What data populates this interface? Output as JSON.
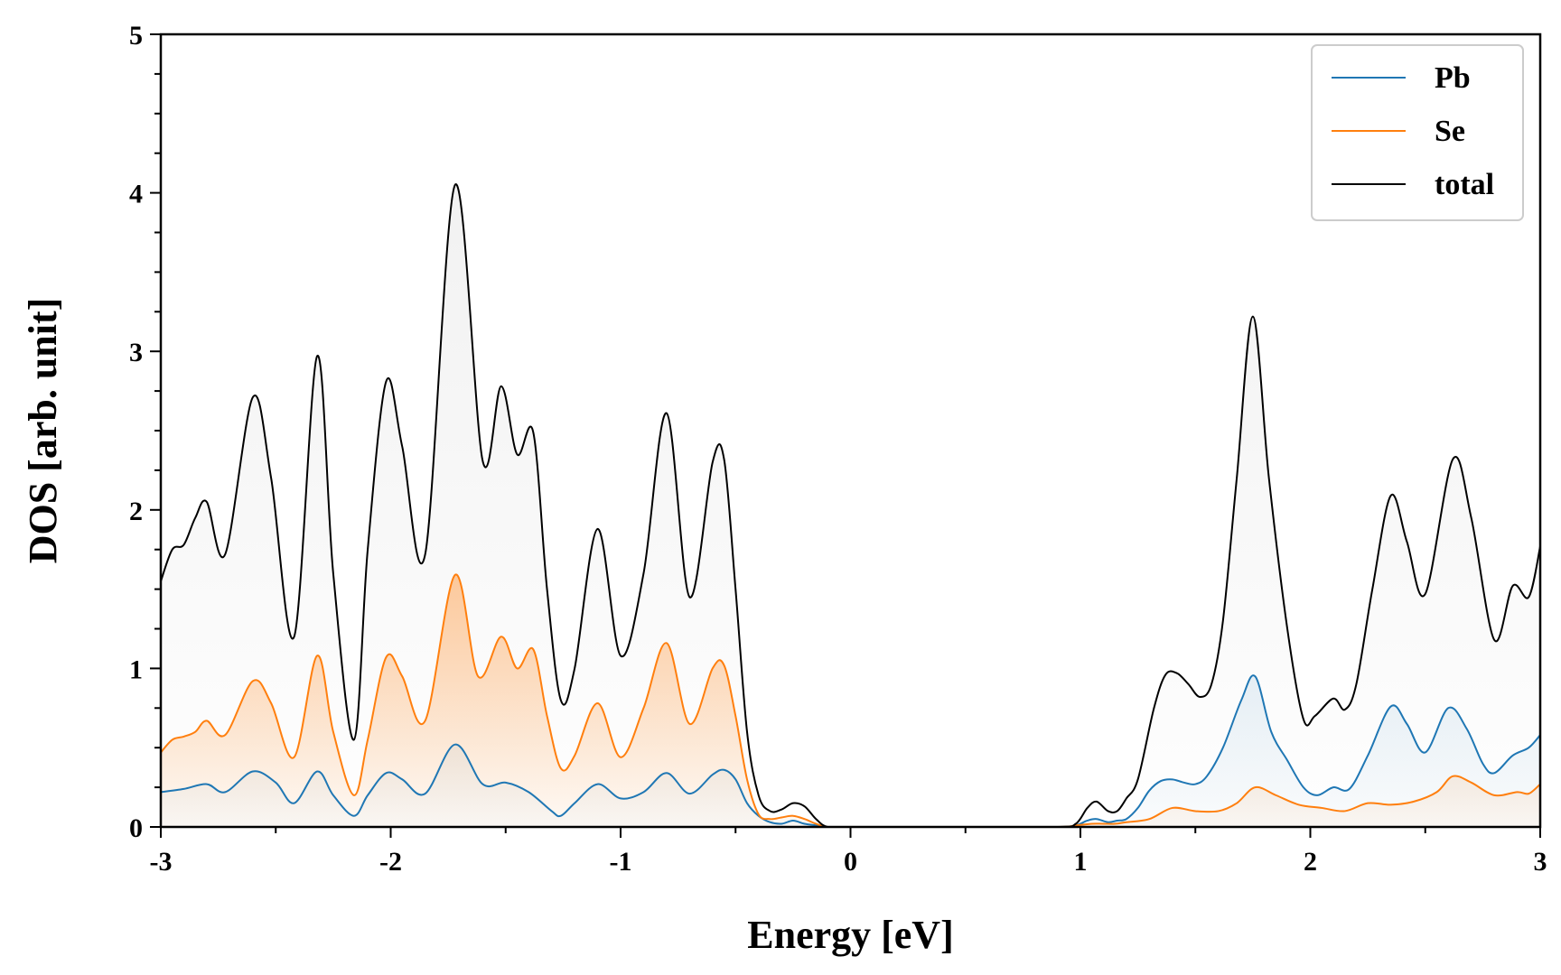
{
  "chart_data": {
    "type": "line",
    "xlabel": "Energy [eV]",
    "ylabel": "DOS [arb. unit]",
    "xlim": [
      -3,
      3
    ],
    "ylim": [
      0,
      5
    ],
    "xticks": [
      "-3",
      "-2",
      "-1",
      "0",
      "1",
      "2",
      "3"
    ],
    "yticks": [
      "0",
      "1",
      "2",
      "3",
      "4",
      "5"
    ],
    "grid": false,
    "legend_position": "top-right",
    "series": [
      {
        "name": "Pb",
        "color": "#1f77b4",
        "x": [
          -3.0,
          -2.9,
          -2.8,
          -2.72,
          -2.6,
          -2.5,
          -2.42,
          -2.32,
          -2.25,
          -2.16,
          -2.1,
          -2.02,
          -1.95,
          -1.85,
          -1.72,
          -1.6,
          -1.5,
          -1.4,
          -1.3,
          -1.26,
          -1.2,
          -1.1,
          -1.0,
          -0.9,
          -0.8,
          -0.7,
          -0.6,
          -0.55,
          -0.5,
          -0.45,
          -0.4,
          -0.35,
          -0.3,
          -0.25,
          -0.2,
          -0.15,
          -0.1,
          0.0,
          0.5,
          0.9,
          0.98,
          1.03,
          1.07,
          1.12,
          1.16,
          1.2,
          1.25,
          1.3,
          1.35,
          1.4,
          1.45,
          1.5,
          1.55,
          1.62,
          1.7,
          1.76,
          1.83,
          1.9,
          1.97,
          2.03,
          2.1,
          2.17,
          2.25,
          2.35,
          2.42,
          2.5,
          2.6,
          2.68,
          2.75,
          2.8,
          2.88,
          2.95,
          3.0
        ],
        "values": [
          0.22,
          0.24,
          0.27,
          0.22,
          0.35,
          0.28,
          0.15,
          0.35,
          0.2,
          0.07,
          0.2,
          0.34,
          0.3,
          0.21,
          0.52,
          0.27,
          0.28,
          0.22,
          0.1,
          0.07,
          0.15,
          0.27,
          0.18,
          0.22,
          0.34,
          0.21,
          0.33,
          0.36,
          0.3,
          0.15,
          0.07,
          0.03,
          0.02,
          0.04,
          0.02,
          0.01,
          0.0,
          0.0,
          0.0,
          0.0,
          0.01,
          0.04,
          0.05,
          0.03,
          0.04,
          0.05,
          0.12,
          0.23,
          0.29,
          0.3,
          0.28,
          0.27,
          0.32,
          0.5,
          0.8,
          0.95,
          0.6,
          0.42,
          0.25,
          0.2,
          0.25,
          0.24,
          0.45,
          0.76,
          0.65,
          0.47,
          0.75,
          0.62,
          0.4,
          0.34,
          0.45,
          0.5,
          0.58
        ]
      },
      {
        "name": "Se",
        "color": "#ff7f0e",
        "x": [
          -3.0,
          -2.95,
          -2.9,
          -2.85,
          -2.8,
          -2.72,
          -2.6,
          -2.52,
          -2.42,
          -2.32,
          -2.25,
          -2.16,
          -2.1,
          -2.02,
          -1.95,
          -1.85,
          -1.72,
          -1.62,
          -1.52,
          -1.45,
          -1.38,
          -1.32,
          -1.26,
          -1.2,
          -1.1,
          -1.0,
          -0.9,
          -0.8,
          -0.7,
          -0.6,
          -0.55,
          -0.5,
          -0.45,
          -0.4,
          -0.35,
          -0.3,
          -0.25,
          -0.2,
          -0.15,
          -0.1,
          0.0,
          0.5,
          0.9,
          0.98,
          1.05,
          1.1,
          1.15,
          1.2,
          1.3,
          1.4,
          1.5,
          1.6,
          1.68,
          1.76,
          1.85,
          1.95,
          2.05,
          2.15,
          2.25,
          2.35,
          2.45,
          2.55,
          2.62,
          2.7,
          2.8,
          2.9,
          2.95,
          3.0
        ],
        "values": [
          0.47,
          0.55,
          0.57,
          0.6,
          0.67,
          0.58,
          0.92,
          0.78,
          0.44,
          1.08,
          0.6,
          0.2,
          0.55,
          1.07,
          0.95,
          0.67,
          1.59,
          0.95,
          1.2,
          1.0,
          1.12,
          0.7,
          0.37,
          0.45,
          0.78,
          0.44,
          0.75,
          1.16,
          0.65,
          1.0,
          1.02,
          0.7,
          0.3,
          0.08,
          0.05,
          0.06,
          0.07,
          0.05,
          0.02,
          0.0,
          0.0,
          0.0,
          0.0,
          0.01,
          0.02,
          0.02,
          0.02,
          0.03,
          0.05,
          0.12,
          0.1,
          0.1,
          0.15,
          0.25,
          0.2,
          0.14,
          0.12,
          0.1,
          0.15,
          0.14,
          0.16,
          0.22,
          0.32,
          0.28,
          0.2,
          0.22,
          0.21,
          0.27
        ]
      },
      {
        "name": "total",
        "color": "#000000",
        "x": [
          -3.0,
          -2.95,
          -2.9,
          -2.85,
          -2.8,
          -2.72,
          -2.6,
          -2.52,
          -2.42,
          -2.32,
          -2.25,
          -2.16,
          -2.1,
          -2.02,
          -1.95,
          -1.85,
          -1.72,
          -1.6,
          -1.52,
          -1.45,
          -1.38,
          -1.32,
          -1.26,
          -1.2,
          -1.1,
          -1.0,
          -0.9,
          -0.8,
          -0.7,
          -0.6,
          -0.55,
          -0.5,
          -0.45,
          -0.4,
          -0.35,
          -0.3,
          -0.25,
          -0.2,
          -0.15,
          -0.1,
          0.0,
          0.5,
          0.9,
          0.98,
          1.03,
          1.07,
          1.12,
          1.16,
          1.2,
          1.25,
          1.32,
          1.37,
          1.42,
          1.47,
          1.52,
          1.57,
          1.62,
          1.68,
          1.75,
          1.82,
          1.9,
          1.97,
          2.02,
          2.1,
          2.15,
          2.2,
          2.27,
          2.35,
          2.42,
          2.5,
          2.62,
          2.7,
          2.8,
          2.88,
          2.95,
          3.0
        ],
        "values": [
          1.55,
          1.75,
          1.78,
          1.95,
          2.05,
          1.72,
          2.71,
          2.2,
          1.2,
          2.97,
          1.6,
          0.55,
          1.75,
          2.81,
          2.4,
          1.72,
          4.05,
          2.31,
          2.78,
          2.35,
          2.49,
          1.5,
          0.8,
          1.0,
          1.88,
          1.08,
          1.6,
          2.61,
          1.45,
          2.3,
          2.32,
          1.5,
          0.6,
          0.2,
          0.1,
          0.11,
          0.15,
          0.13,
          0.05,
          0.0,
          0.0,
          0.0,
          0.0,
          0.02,
          0.12,
          0.16,
          0.1,
          0.1,
          0.18,
          0.3,
          0.75,
          0.96,
          0.97,
          0.9,
          0.82,
          0.9,
          1.3,
          2.2,
          3.22,
          2.2,
          1.25,
          0.68,
          0.7,
          0.81,
          0.74,
          0.9,
          1.5,
          2.09,
          1.8,
          1.47,
          2.32,
          1.95,
          1.18,
          1.52,
          1.45,
          1.77
        ]
      }
    ]
  }
}
